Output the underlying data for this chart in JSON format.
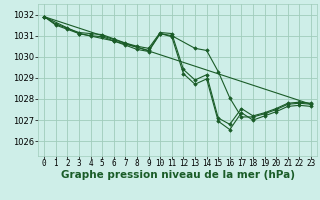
{
  "bg_color": "#ceeee8",
  "grid_color": "#a0ccbb",
  "line_color": "#1a5c28",
  "marker_color": "#1a5c28",
  "xlabel": "Graphe pression niveau de la mer (hPa)",
  "xlabel_fontsize": 7.5,
  "xtick_fontsize": 5.5,
  "ytick_fontsize": 6,
  "xlim": [
    -0.5,
    23.5
  ],
  "ylim": [
    1025.3,
    1032.5
  ],
  "yticks": [
    1026,
    1027,
    1028,
    1029,
    1030,
    1031,
    1032
  ],
  "xticks": [
    0,
    1,
    2,
    3,
    4,
    5,
    6,
    7,
    8,
    9,
    10,
    11,
    12,
    13,
    14,
    15,
    16,
    17,
    18,
    19,
    20,
    21,
    22,
    23
  ],
  "series": [
    {
      "x": [
        0,
        1,
        2,
        3,
        4,
        5,
        6,
        7,
        8,
        9,
        10,
        11,
        12,
        13,
        14,
        15,
        16,
        17,
        18,
        19,
        20,
        21,
        22,
        23
      ],
      "y": [
        1031.9,
        1031.55,
        1031.35,
        1031.15,
        1031.1,
        1031.05,
        1030.85,
        1030.65,
        1030.5,
        1030.4,
        1031.15,
        1031.1,
        1029.4,
        1028.9,
        1029.15,
        1027.1,
        1026.8,
        1027.55,
        1027.2,
        1027.35,
        1027.55,
        1027.8,
        1027.85,
        1027.8
      ]
    },
    {
      "x": [
        0,
        1,
        2,
        3,
        4,
        5,
        6,
        7,
        8,
        9,
        10,
        11,
        12,
        13,
        14,
        15,
        16,
        17,
        18,
        19,
        20,
        21,
        22,
        23
      ],
      "y": [
        1031.9,
        1031.5,
        1031.3,
        1031.1,
        1031.0,
        1030.95,
        1030.75,
        1030.55,
        1030.35,
        1030.25,
        1031.1,
        1030.95,
        1029.2,
        1028.7,
        1028.95,
        1026.95,
        1026.55,
        1027.35,
        1027.0,
        1027.2,
        1027.4,
        1027.65,
        1027.7,
        1027.65
      ]
    },
    {
      "x": [
        0,
        3,
        6,
        9,
        10,
        11,
        13,
        14,
        15,
        16,
        17,
        18,
        19,
        20,
        21,
        22,
        23
      ],
      "y": [
        1031.9,
        1031.1,
        1030.75,
        1030.3,
        1031.1,
        1031.0,
        1030.4,
        1030.3,
        1029.3,
        1028.05,
        1027.15,
        1027.15,
        1027.3,
        1027.5,
        1027.75,
        1027.8,
        1027.75
      ]
    },
    {
      "x": [
        0,
        23
      ],
      "y": [
        1031.9,
        1027.75
      ]
    }
  ]
}
